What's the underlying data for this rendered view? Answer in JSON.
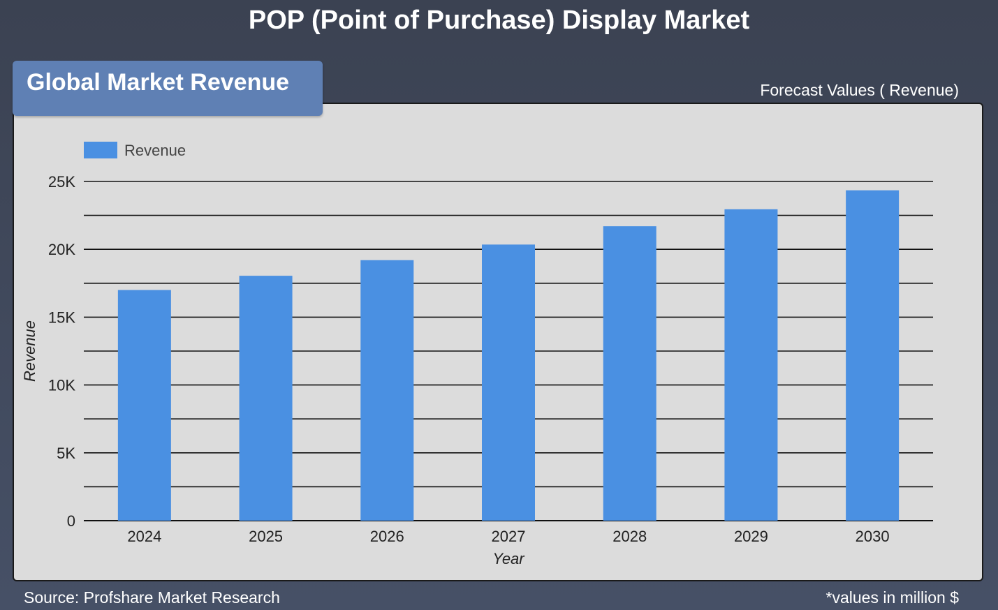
{
  "header": {
    "title": "POP (Point of Purchase) Display Market",
    "tab_label": "Global Market Revenue",
    "forecast_label": "Forecast Values ( Revenue)"
  },
  "footer": {
    "source": "Source: Profshare Market Research",
    "units_note": "*values in million $"
  },
  "colors": {
    "bar": "#4a90e2",
    "panel": "#dcdcdc",
    "tab": "#5f80b4",
    "background": "#3f4759"
  },
  "chart_data": {
    "type": "bar",
    "categories": [
      "2024",
      "2025",
      "2026",
      "2027",
      "2028",
      "2029",
      "2030"
    ],
    "series": [
      {
        "name": "Revenue",
        "values": [
          17000,
          18050,
          19200,
          20350,
          21700,
          22950,
          24350
        ]
      }
    ],
    "xlabel": "Year",
    "ylabel": "Revenue",
    "ylim": [
      0,
      25000
    ],
    "yticks": [
      0,
      5000,
      10000,
      15000,
      20000,
      25000
    ],
    "ytick_labels": [
      "0",
      "5K",
      "10K",
      "15K",
      "20K",
      "25K"
    ],
    "grid": true,
    "legend": "top-left"
  }
}
